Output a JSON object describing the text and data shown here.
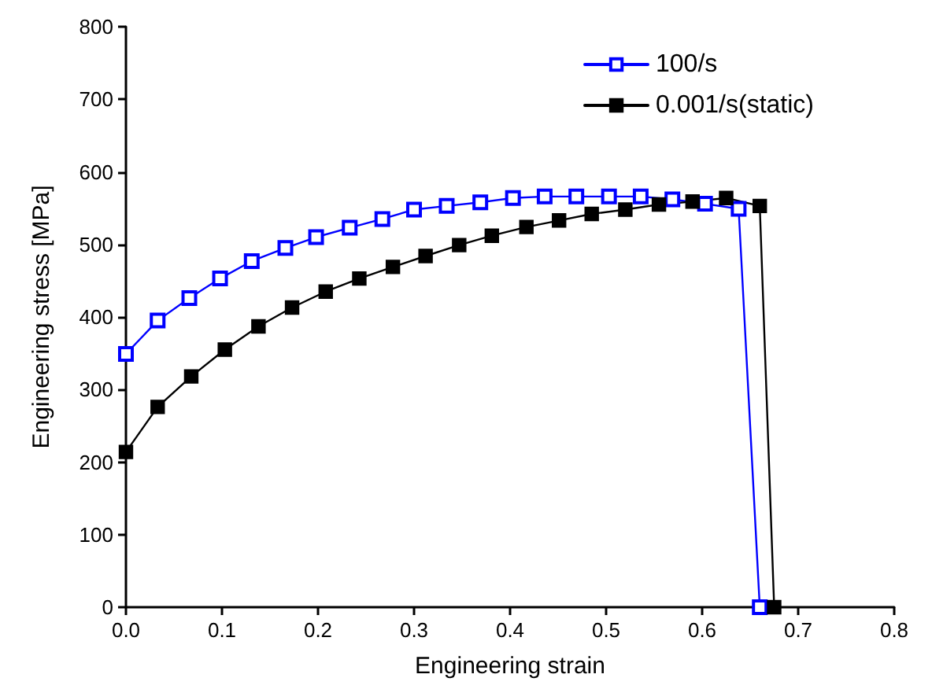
{
  "chart_data": {
    "type": "line",
    "xlabel": "Engineering strain",
    "ylabel": "Engineering stress [MPa]",
    "xlim": [
      0,
      0.8
    ],
    "xticks": [
      {
        "value": 0,
        "label": "0.0"
      },
      0.1,
      0.2,
      0.3,
      0.4,
      0.5,
      0.6,
      0.7,
      0.8
    ],
    "ylim": [
      0,
      800
    ],
    "yticks": [
      0,
      100,
      200,
      300,
      400,
      500,
      600,
      700,
      800
    ],
    "grid": false,
    "legend": "top right",
    "marker": "square",
    "line_style": "solid",
    "series": [
      {
        "name": "100/s",
        "color": "#0000ff",
        "x": [
          0,
          0.033,
          0.066,
          0.098,
          0.131,
          0.166,
          0.198,
          0.233,
          0.267,
          0.3,
          0.334,
          0.369,
          0.403,
          0.436,
          0.469,
          0.503,
          0.536,
          0.569,
          0.603,
          0.638,
          0.66
        ],
        "values": [
          349,
          395,
          426,
          453,
          477,
          495,
          510,
          523,
          535,
          548,
          553,
          558,
          564,
          566,
          566,
          566,
          566,
          562,
          556,
          549,
          0
        ]
      },
      {
        "name": "0.001/s(static)",
        "color": "#000000",
        "x": [
          0,
          0.033,
          0.068,
          0.103,
          0.138,
          0.173,
          0.208,
          0.243,
          0.278,
          0.312,
          0.347,
          0.381,
          0.417,
          0.451,
          0.485,
          0.52,
          0.555,
          0.59,
          0.625,
          0.66,
          0.675
        ],
        "values": [
          214,
          276,
          318,
          355,
          387,
          413,
          435,
          453,
          469,
          484,
          499,
          512,
          524,
          533,
          542,
          548,
          555,
          559,
          564,
          553,
          0
        ]
      }
    ]
  }
}
